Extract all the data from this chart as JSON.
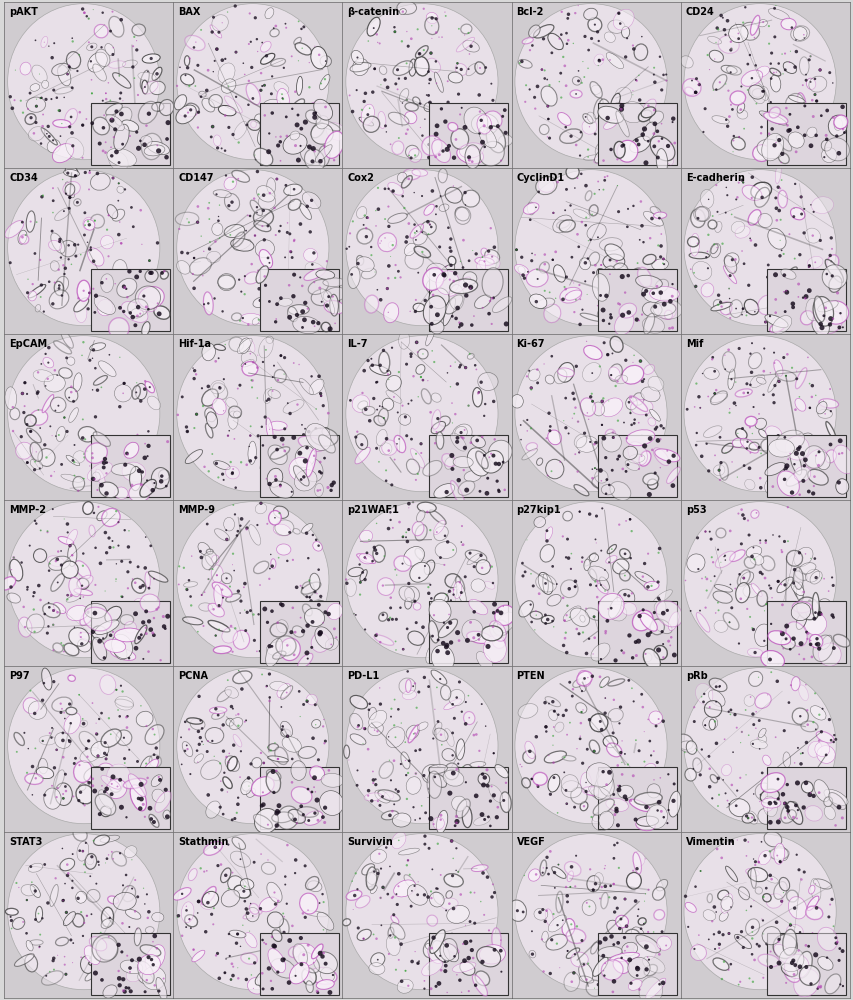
{
  "grid_rows": 6,
  "grid_cols": 5,
  "labels": [
    [
      "pAKT",
      "BAX",
      "β-catenin",
      "Bcl-2",
      "CD24"
    ],
    [
      "CD34",
      "CD147",
      "Cox2",
      "CyclinD1",
      "E-cadherin"
    ],
    [
      "EpCAM",
      "Hif-1a",
      "IL-7",
      "Ki-67",
      "Mif"
    ],
    [
      "MMP-2",
      "MMP-9",
      "p21WAF1",
      "p27kip1",
      "p53"
    ],
    [
      "P97",
      "PCNA",
      "PD-L1",
      "PTEN",
      "pRb"
    ],
    [
      "STAT3",
      "Stathmin",
      "Survivin",
      "VEGF",
      "Vimentin"
    ]
  ],
  "figsize": [
    8.54,
    10.0
  ],
  "dpi": 100,
  "label_fontsize": 7,
  "label_color": "#000000"
}
